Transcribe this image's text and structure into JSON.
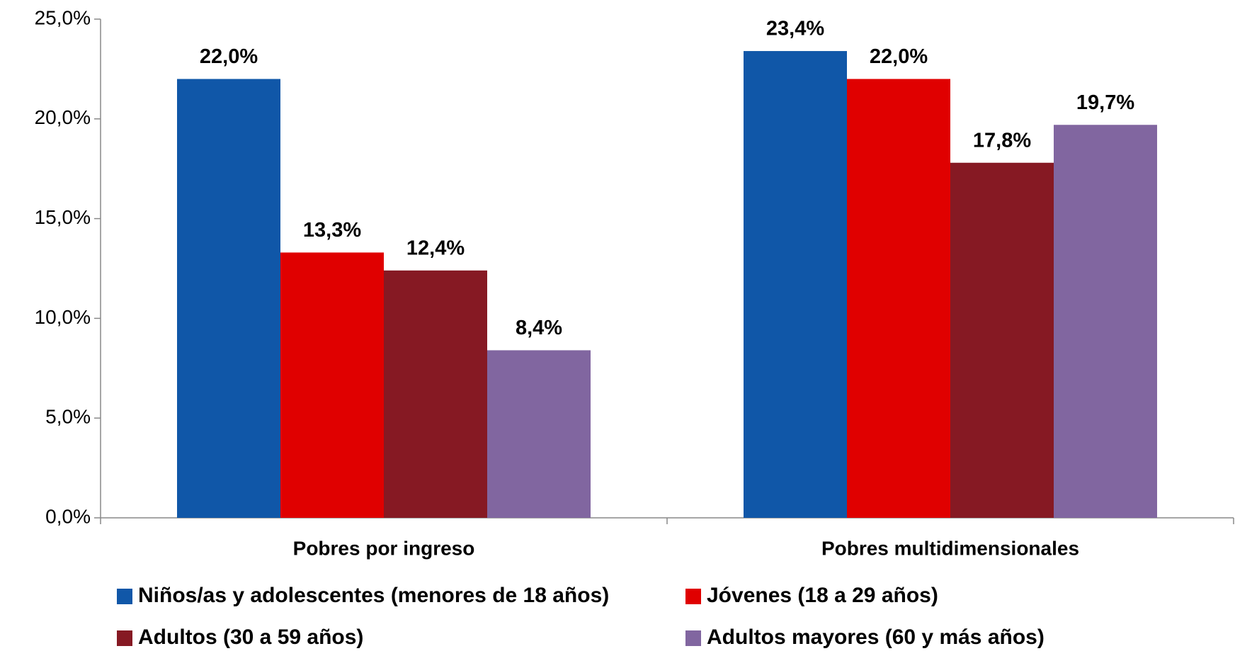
{
  "chart_data": {
    "type": "bar",
    "categories": [
      "Pobres por ingreso",
      "Pobres multidimensionales"
    ],
    "series": [
      {
        "name": "Niños/as y adolescentes (menores de 18 años)",
        "color": "#1057a8",
        "values": [
          22.0,
          23.4
        ],
        "value_labels": [
          "22,0%",
          "23,4%"
        ]
      },
      {
        "name": "Jóvenes (18 a 29 años)",
        "color": "#e00000",
        "values": [
          13.3,
          22.0
        ],
        "value_labels": [
          "13,3%",
          "22,0%"
        ]
      },
      {
        "name": "Adultos (30 a 59 años)",
        "color": "#861923",
        "values": [
          12.4,
          17.8
        ],
        "value_labels": [
          "12,4%",
          "17,8%"
        ]
      },
      {
        "name": "Adultos mayores (60 y más años)",
        "color": "#8166a0",
        "values": [
          8.4,
          19.7
        ],
        "value_labels": [
          "8,4%",
          "19,7%"
        ]
      }
    ],
    "ylim": [
      0,
      25
    ],
    "yticks": [
      {
        "value": 0,
        "label": "0,0%"
      },
      {
        "value": 5,
        "label": "5,0%"
      },
      {
        "value": 10,
        "label": "10,0%"
      },
      {
        "value": 15,
        "label": "15,0%"
      },
      {
        "value": 20,
        "label": "20,0%"
      },
      {
        "value": 25,
        "label": "25,0%"
      }
    ],
    "grid": false,
    "legend": "bottom"
  }
}
